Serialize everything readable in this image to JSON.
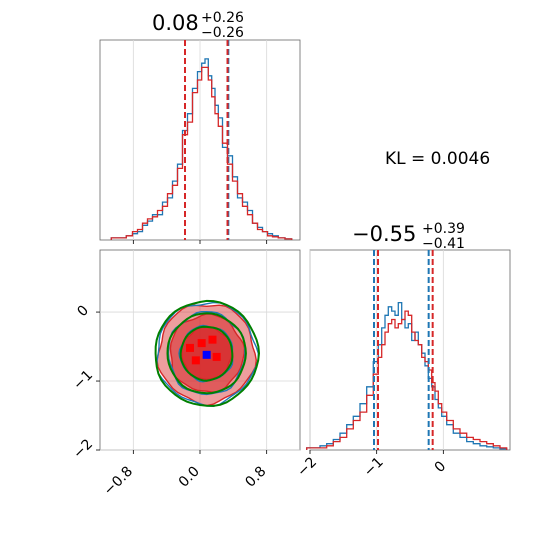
{
  "chart_data": {
    "type": "corner",
    "kl_text": "KL = 0.0046",
    "colors": {
      "blue": "#1f77b4",
      "red": "#d62728",
      "green": "#008000",
      "grid": "#d9d9d9",
      "marker_blue": "#0000ff",
      "marker_red": "#ff0000"
    },
    "panels": [
      {
        "id": "hist_x",
        "type": "histogram",
        "title_value": "0.08",
        "title_plus": "+0.26",
        "title_minus": "−0.26",
        "xlim": [
          -1.2,
          1.2
        ],
        "xticks": [
          -0.8,
          0.0,
          0.8
        ],
        "quantiles_blue": [
          -0.18,
          0.34
        ],
        "quantiles_red": [
          -0.18,
          0.33
        ],
        "series": [
          {
            "color": "blue",
            "x": [
              -1.02,
              -0.93,
              -0.84,
              -0.78,
              -0.72,
              -0.66,
              -0.6,
              -0.54,
              -0.48,
              -0.42,
              -0.36,
              -0.3,
              -0.24,
              -0.18,
              -0.12,
              -0.06,
              0.0,
              0.04,
              0.08,
              0.12,
              0.16,
              0.2,
              0.24,
              0.3,
              0.36,
              0.42,
              0.48,
              0.54,
              0.6,
              0.66,
              0.72,
              0.78,
              0.84,
              0.9,
              0.98,
              1.06
            ],
            "y": [
              0.01,
              0.01,
              0.02,
              0.03,
              0.04,
              0.07,
              0.09,
              0.12,
              0.12,
              0.18,
              0.2,
              0.28,
              0.36,
              0.52,
              0.6,
              0.72,
              0.8,
              0.84,
              0.86,
              0.78,
              0.72,
              0.64,
              0.58,
              0.44,
              0.4,
              0.3,
              0.2,
              0.18,
              0.14,
              0.08,
              0.06,
              0.04,
              0.03,
              0.02,
              0.01,
              0.005
            ]
          },
          {
            "color": "red",
            "x": [
              -1.02,
              -0.93,
              -0.84,
              -0.78,
              -0.72,
              -0.66,
              -0.6,
              -0.54,
              -0.48,
              -0.42,
              -0.36,
              -0.3,
              -0.24,
              -0.18,
              -0.12,
              -0.06,
              0.0,
              0.04,
              0.08,
              0.12,
              0.16,
              0.2,
              0.24,
              0.3,
              0.36,
              0.42,
              0.48,
              0.54,
              0.6,
              0.66,
              0.72,
              0.78,
              0.84,
              0.9,
              0.98,
              1.06
            ],
            "y": [
              0.01,
              0.01,
              0.02,
              0.04,
              0.05,
              0.08,
              0.1,
              0.11,
              0.14,
              0.16,
              0.22,
              0.26,
              0.34,
              0.5,
              0.56,
              0.7,
              0.76,
              0.82,
              0.82,
              0.76,
              0.68,
              0.6,
              0.54,
              0.46,
              0.36,
              0.28,
              0.22,
              0.16,
              0.12,
              0.08,
              0.05,
              0.04,
              0.02,
              0.015,
              0.01,
              0.005
            ]
          }
        ]
      },
      {
        "id": "hist_y",
        "type": "histogram",
        "title_value": "−0.55",
        "title_plus": "+0.39",
        "title_minus": "−0.41",
        "xlim": [
          -2.0,
          1.0
        ],
        "xticks": [
          -2,
          -1,
          0
        ],
        "quantiles_blue": [
          -1.04,
          -0.22
        ],
        "quantiles_red": [
          -0.98,
          -0.16
        ],
        "series": [
          {
            "color": "blue",
            "x": [
              -2.0,
              -1.9,
              -1.8,
              -1.7,
              -1.6,
              -1.5,
              -1.4,
              -1.3,
              -1.2,
              -1.1,
              -1.0,
              -0.95,
              -0.9,
              -0.85,
              -0.8,
              -0.75,
              -0.7,
              -0.65,
              -0.6,
              -0.55,
              -0.5,
              -0.45,
              -0.4,
              -0.35,
              -0.3,
              -0.25,
              -0.2,
              -0.15,
              -0.1,
              -0.05,
              0.0,
              0.1,
              0.2,
              0.3,
              0.4,
              0.5,
              0.6,
              0.7,
              0.8,
              0.9
            ],
            "y": [
              0.01,
              0.01,
              0.02,
              0.03,
              0.05,
              0.08,
              0.12,
              0.16,
              0.22,
              0.3,
              0.42,
              0.5,
              0.58,
              0.64,
              0.68,
              0.66,
              0.64,
              0.7,
              0.62,
              0.58,
              0.6,
              0.52,
              0.56,
              0.5,
              0.46,
              0.4,
              0.34,
              0.3,
              0.24,
              0.2,
              0.16,
              0.12,
              0.08,
              0.06,
              0.04,
              0.03,
              0.02,
              0.015,
              0.01,
              0.005
            ]
          },
          {
            "color": "red",
            "x": [
              -2.0,
              -1.9,
              -1.8,
              -1.7,
              -1.6,
              -1.5,
              -1.4,
              -1.3,
              -1.2,
              -1.1,
              -1.0,
              -0.95,
              -0.9,
              -0.85,
              -0.8,
              -0.75,
              -0.7,
              -0.65,
              -0.6,
              -0.55,
              -0.5,
              -0.45,
              -0.4,
              -0.35,
              -0.3,
              -0.25,
              -0.2,
              -0.15,
              -0.1,
              -0.05,
              0.0,
              0.1,
              0.2,
              0.3,
              0.4,
              0.5,
              0.6,
              0.7,
              0.8,
              0.9
            ],
            "y": [
              0.01,
              0.01,
              0.01,
              0.02,
              0.04,
              0.06,
              0.1,
              0.14,
              0.18,
              0.26,
              0.36,
              0.44,
              0.5,
              0.56,
              0.6,
              0.62,
              0.58,
              0.6,
              0.62,
              0.66,
              0.64,
              0.56,
              0.52,
              0.5,
              0.44,
              0.42,
              0.38,
              0.32,
              0.28,
              0.22,
              0.18,
              0.14,
              0.1,
              0.08,
              0.06,
              0.05,
              0.04,
              0.03,
              0.02,
              0.01
            ]
          }
        ]
      },
      {
        "id": "joint",
        "type": "contour",
        "xlim": [
          -1.2,
          1.2
        ],
        "ylim": [
          -2.0,
          0.9
        ],
        "xticks": [
          -0.8,
          0.0,
          0.8
        ],
        "yticks": [
          -2,
          -1,
          0
        ],
        "center": [
          0.08,
          -0.6
        ],
        "blue_marker": [
          0.08,
          -0.62
        ],
        "red_squares": [
          [
            -0.12,
            -0.52
          ],
          [
            0.2,
            -0.65
          ],
          [
            0.02,
            -0.45
          ],
          [
            -0.05,
            -0.7
          ],
          [
            0.15,
            -0.4
          ]
        ],
        "contours": [
          {
            "color": "red",
            "filled": true,
            "sx": 0.58,
            "sy": 0.72
          },
          {
            "color": "red",
            "filled": true,
            "sx": 0.44,
            "sy": 0.56
          },
          {
            "color": "red",
            "filled": true,
            "sx": 0.3,
            "sy": 0.38
          },
          {
            "color": "blue",
            "filled": false,
            "sx": 0.6,
            "sy": 0.74
          },
          {
            "color": "blue",
            "filled": false,
            "sx": 0.46,
            "sy": 0.6
          },
          {
            "color": "blue",
            "filled": false,
            "sx": 0.32,
            "sy": 0.4
          },
          {
            "color": "green",
            "filled": false,
            "sx": 0.62,
            "sy": 0.76
          },
          {
            "color": "green",
            "filled": false,
            "sx": 0.47,
            "sy": 0.58
          },
          {
            "color": "green",
            "filled": false,
            "sx": 0.31,
            "sy": 0.39
          }
        ]
      }
    ]
  }
}
